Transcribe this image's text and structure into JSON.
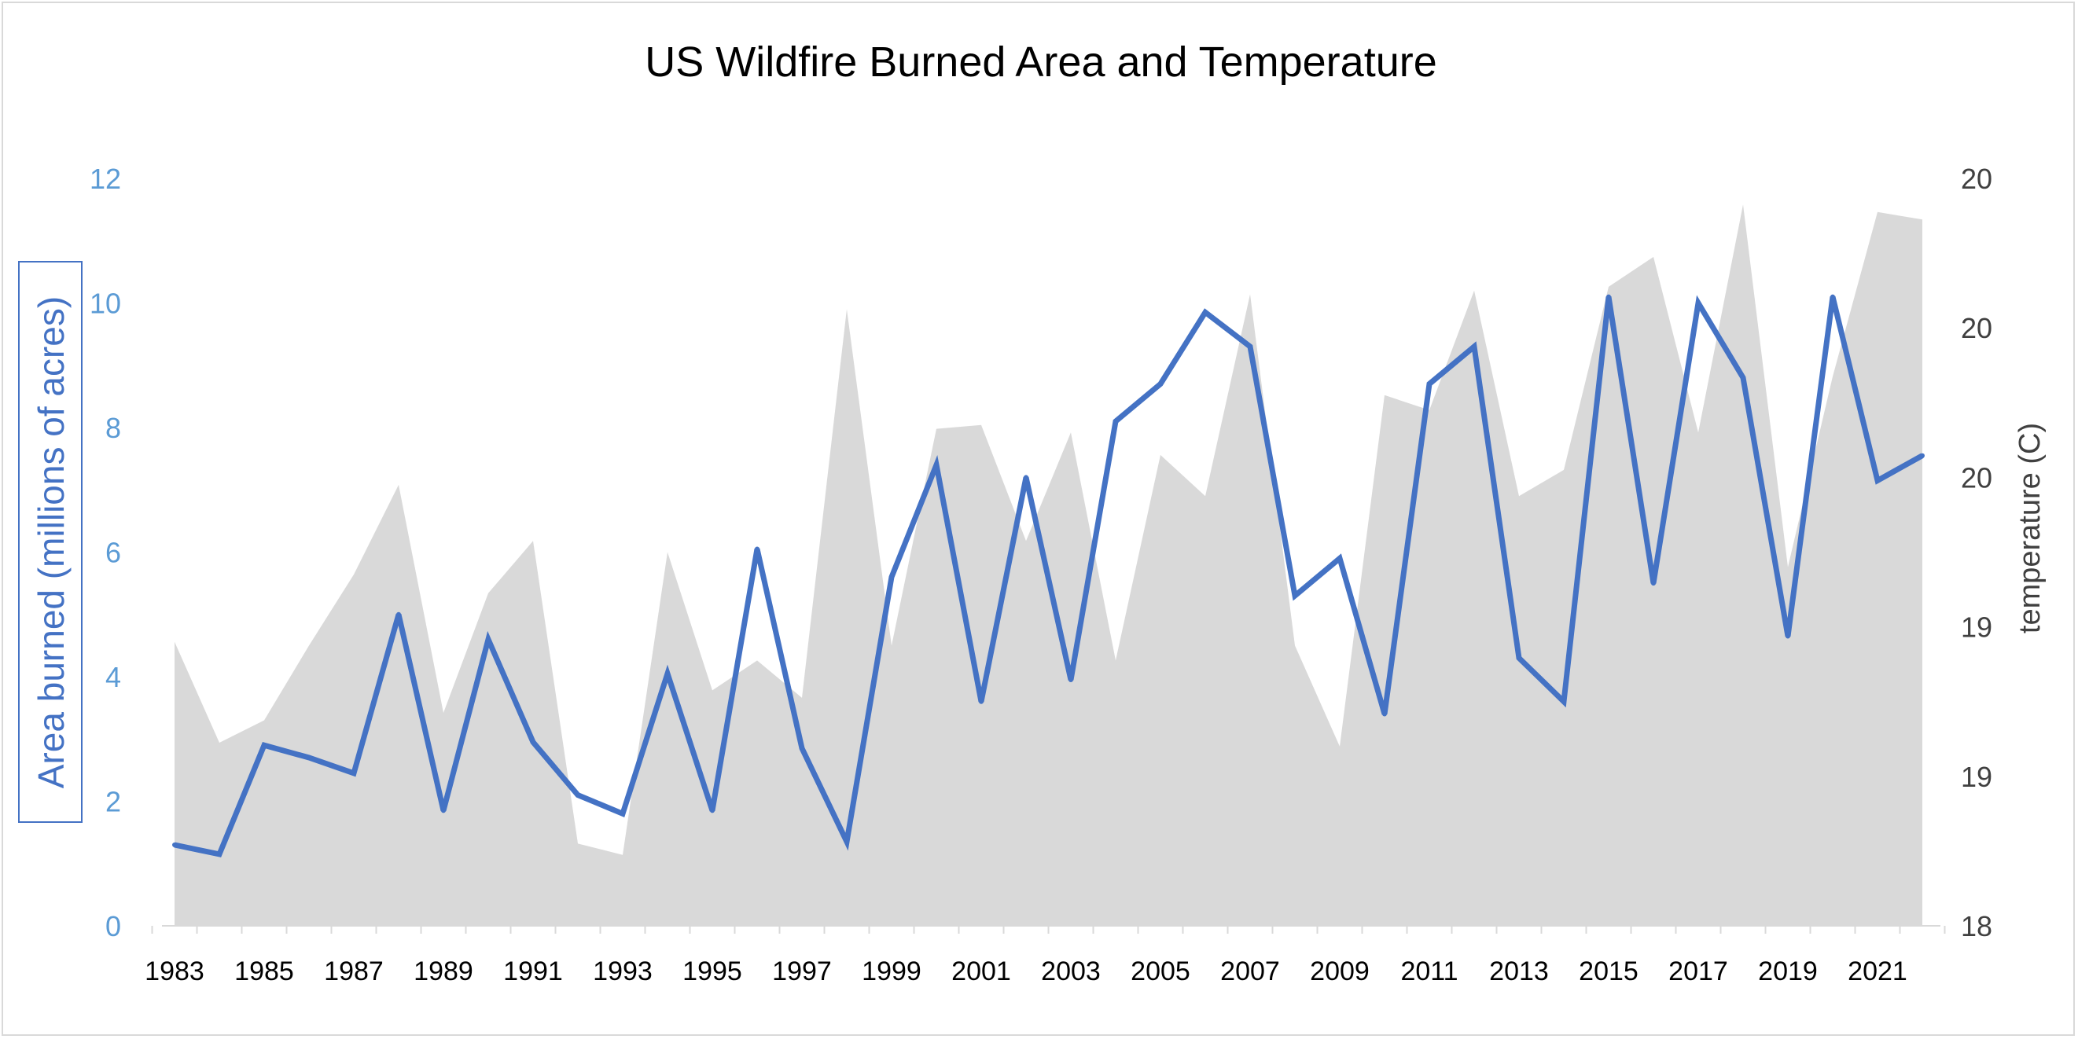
{
  "chart_data": {
    "type": "line",
    "title": "US Wildfire Burned Area and Temperature",
    "xlabel": "",
    "ylabel": "Area burned (millions of acres)",
    "y2label": "temperature (C)",
    "ylim": [
      0,
      12
    ],
    "y2lim": [
      18,
      20
    ],
    "y_ticks": [
      "0",
      "2",
      "4",
      "6",
      "8",
      "10",
      "12"
    ],
    "y2_ticks": [
      "18",
      "19",
      "19",
      "20",
      "20",
      "20"
    ],
    "x_tick_labels": [
      "1983",
      "1985",
      "1987",
      "1989",
      "1991",
      "1993",
      "1995",
      "1997",
      "1999",
      "2001",
      "2003",
      "2005",
      "2007",
      "2009",
      "2011",
      "2013",
      "2015",
      "2017",
      "2019",
      "2021"
    ],
    "x": [
      1983,
      1984,
      1985,
      1986,
      1987,
      1988,
      1989,
      1990,
      1991,
      1992,
      1993,
      1994,
      1995,
      1996,
      1997,
      1998,
      1999,
      2000,
      2001,
      2002,
      2003,
      2004,
      2005,
      2006,
      2007,
      2008,
      2009,
      2010,
      2011,
      2012,
      2013,
      2014,
      2015,
      2016,
      2017,
      2018,
      2019,
      2020,
      2021,
      2022
    ],
    "series": [
      {
        "name": "Area burned (millions of acres)",
        "type": "line",
        "axis": "left",
        "color": "#4472c4",
        "values": [
          1.3,
          1.15,
          2.9,
          2.7,
          2.45,
          5.0,
          1.85,
          4.6,
          2.95,
          2.1,
          1.8,
          4.05,
          1.85,
          6.05,
          2.85,
          1.35,
          5.6,
          7.4,
          3.6,
          7.2,
          3.95,
          8.1,
          8.7,
          9.85,
          9.3,
          5.3,
          5.9,
          3.4,
          8.7,
          9.3,
          4.3,
          3.6,
          10.1,
          5.5,
          10.0,
          8.8,
          4.65,
          10.1,
          7.15,
          7.55
        ]
      },
      {
        "name": "temperature (C)",
        "type": "area",
        "axis": "right",
        "color": "#d9d9d9",
        "values": [
          18.76,
          18.49,
          18.55,
          18.75,
          18.94,
          19.18,
          18.57,
          18.89,
          19.03,
          18.22,
          18.19,
          19.0,
          18.63,
          18.71,
          18.61,
          19.65,
          18.75,
          19.33,
          19.34,
          19.03,
          19.32,
          18.71,
          19.26,
          19.15,
          19.69,
          18.75,
          18.48,
          19.42,
          19.38,
          19.7,
          19.15,
          19.22,
          19.71,
          19.79,
          19.32,
          19.93,
          18.96,
          19.47,
          19.91,
          19.89
        ]
      }
    ],
    "grid": false,
    "legend": "none"
  }
}
